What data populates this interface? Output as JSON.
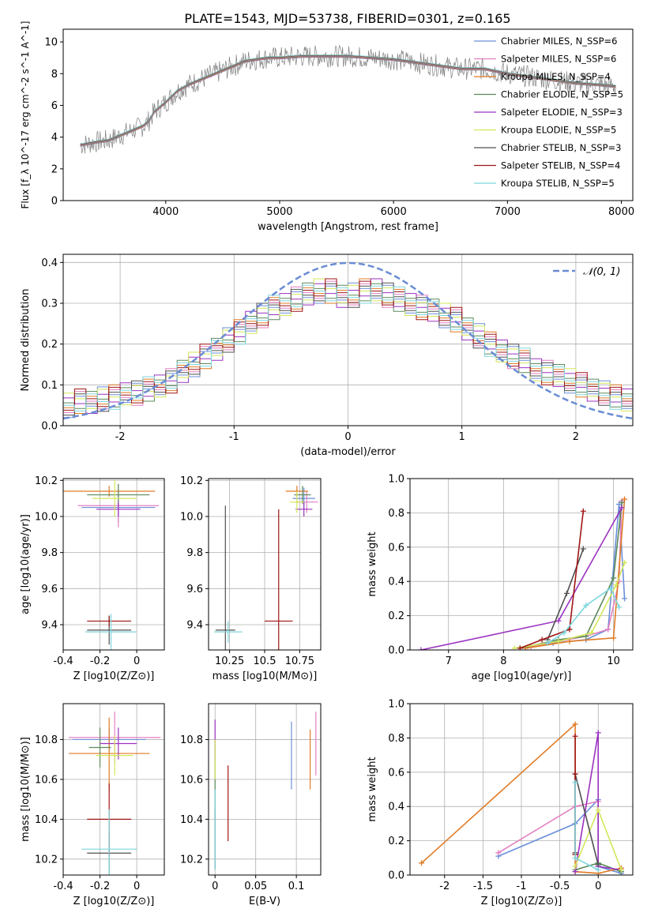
{
  "figure_title": "PLATE=1543, MJD=53738, FIBERID=0301, z=0.165",
  "legend_labels": [
    "Chabrier MILES, N_SSP=6",
    "Salpeter MILES, N_SSP=6",
    "Kroupa MILES, N_SSP=4",
    "Chabrier ELODIE, N_SSP=5",
    "Salpeter ELODIE, N_SSP=3",
    "Kroupa ELODIE, N_SSP=5",
    "Chabrier STELIB, N_SSP=3",
    "Salpeter STELIB, N_SSP=4",
    "Kroupa STELIB, N_SSP=5"
  ],
  "colors": {
    "data": "#808080",
    "models": [
      "#6b8fd9",
      "#e37fc0",
      "#e07b25",
      "#5c8a5c",
      "#9b32c0",
      "#d4e65a",
      "#505050",
      "#a01515",
      "#7ed6de"
    ]
  },
  "chart_data": [
    {
      "id": "spectrum",
      "type": "line",
      "title": "PLATE=1543, MJD=53738, FIBERID=0301, z=0.165",
      "xlabel": "wavelength [Angstrom, rest frame]",
      "ylabel": "Flux [f_λ 10^-17 erg cm^-2 s^-1 A^-1]",
      "xlim": [
        3100,
        8100
      ],
      "ylim": [
        0,
        10.8
      ],
      "xticks": [
        4000,
        5000,
        6000,
        7000,
        8000
      ],
      "yticks": [
        0,
        2,
        4,
        6,
        8,
        10
      ],
      "grid": false,
      "legend": "top-right",
      "x": [
        3250,
        3400,
        3500,
        3600,
        3700,
        3800,
        3850,
        3900,
        4000,
        4100,
        4200,
        4300,
        4400,
        4500,
        4600,
        4700,
        4800,
        4900,
        5000,
        5200,
        5400,
        5600,
        5800,
        6000,
        6200,
        6400,
        6600,
        6800,
        7000,
        7200,
        7400,
        7600,
        7800,
        7950
      ],
      "y": [
        3.5,
        3.7,
        3.8,
        4.1,
        4.4,
        4.7,
        5.0,
        5.6,
        6.2,
        6.9,
        7.3,
        7.6,
        7.9,
        8.2,
        8.5,
        8.8,
        8.9,
        9.0,
        9.0,
        9.1,
        9.1,
        9.1,
        9.0,
        8.9,
        8.7,
        8.5,
        8.3,
        8.3,
        8.0,
        7.8,
        7.6,
        7.4,
        7.3,
        7.2
      ]
    },
    {
      "id": "residuals",
      "type": "line",
      "xlabel": "(data-model)/error",
      "ylabel": "Normed distribution",
      "xlim": [
        -2.5,
        2.5
      ],
      "ylim": [
        0,
        0.42
      ],
      "xticks": [
        -2,
        -1,
        0,
        1,
        2
      ],
      "yticks": [
        0.0,
        0.1,
        0.2,
        0.3,
        0.4
      ],
      "grid": true,
      "legend": "top-right",
      "reference_curve": "N(0,1)",
      "hist_x": [
        -2.5,
        -2.4,
        -2.3,
        -2.2,
        -2.1,
        -2.0,
        -1.9,
        -1.8,
        -1.7,
        -1.6,
        -1.5,
        -1.4,
        -1.3,
        -1.2,
        -1.1,
        -1.0,
        -0.9,
        -0.8,
        -0.7,
        -0.6,
        -0.5,
        -0.4,
        -0.3,
        -0.2,
        -0.1,
        0.0,
        0.1,
        0.2,
        0.3,
        0.4,
        0.5,
        0.6,
        0.7,
        0.8,
        0.9,
        1.0,
        1.1,
        1.2,
        1.3,
        1.4,
        1.5,
        1.6,
        1.7,
        1.8,
        1.9,
        2.0,
        2.1,
        2.2,
        2.3,
        2.4,
        2.5
      ],
      "hist_y": [
        0.05,
        0.06,
        0.06,
        0.065,
        0.07,
        0.075,
        0.08,
        0.09,
        0.1,
        0.11,
        0.13,
        0.15,
        0.17,
        0.19,
        0.21,
        0.23,
        0.25,
        0.27,
        0.29,
        0.3,
        0.31,
        0.32,
        0.33,
        0.33,
        0.32,
        0.32,
        0.33,
        0.33,
        0.32,
        0.31,
        0.3,
        0.29,
        0.28,
        0.27,
        0.26,
        0.24,
        0.22,
        0.2,
        0.18,
        0.17,
        0.16,
        0.14,
        0.13,
        0.12,
        0.11,
        0.1,
        0.09,
        0.08,
        0.07,
        0.06
      ]
    },
    {
      "id": "age_vs_Z",
      "type": "scatter",
      "xlabel": "Z [log10(Z/Z⊙)]",
      "ylabel": "age [log10(age/yr)]",
      "xlim": [
        -0.4,
        0.15
      ],
      "ylim": [
        9.26,
        10.21
      ],
      "xticks": [
        -0.4,
        -0.2,
        0.0
      ],
      "yticks": [
        9.4,
        9.6,
        9.8,
        10.0,
        10.2
      ],
      "grid": true,
      "points": [
        {
          "x": -0.1,
          "y": 10.05,
          "xerr": 0.2,
          "yerr": 0.08,
          "c": 0
        },
        {
          "x": -0.1,
          "y": 10.06,
          "xerr": 0.22,
          "yerr": 0.12,
          "c": 1
        },
        {
          "x": -0.15,
          "y": 10.14,
          "xerr": 0.25,
          "yerr": 0.03,
          "c": 2
        },
        {
          "x": -0.1,
          "y": 10.12,
          "xerr": 0.17,
          "yerr": 0.06,
          "c": 3
        },
        {
          "x": -0.1,
          "y": 10.04,
          "xerr": 0.12,
          "yerr": 0.04,
          "c": 4
        },
        {
          "x": -0.12,
          "y": 10.1,
          "xerr": 0.12,
          "yerr": 0.1,
          "c": 5
        },
        {
          "x": -0.15,
          "y": 9.37,
          "xerr": 0.12,
          "yerr": 0.08,
          "c": 6
        },
        {
          "x": -0.15,
          "y": 9.42,
          "xerr": 0.12,
          "yerr": 0.03,
          "c": 7
        },
        {
          "x": -0.14,
          "y": 9.36,
          "xerr": 0.14,
          "yerr": 0.1,
          "c": 8
        }
      ]
    },
    {
      "id": "age_vs_mass",
      "type": "scatter",
      "xlabel": "mass [log10(M/M⊙)]",
      "ylabel": "",
      "xlim": [
        10.1,
        10.9
      ],
      "ylim": [
        9.26,
        10.21
      ],
      "xticks": [
        10.25,
        10.5,
        10.75
      ],
      "yticks": [
        9.4,
        9.6,
        9.8,
        10.0,
        10.2
      ],
      "grid": true,
      "points": [
        {
          "x": 10.78,
          "y": 10.1,
          "xerr": 0.08,
          "yerr": 0.06,
          "c": 0
        },
        {
          "x": 10.8,
          "y": 10.08,
          "xerr": 0.08,
          "yerr": 0.06,
          "c": 1
        },
        {
          "x": 10.73,
          "y": 10.14,
          "xerr": 0.08,
          "yerr": 0.03,
          "c": 2
        },
        {
          "x": 10.77,
          "y": 10.12,
          "xerr": 0.06,
          "yerr": 0.05,
          "c": 3
        },
        {
          "x": 10.78,
          "y": 10.04,
          "xerr": 0.06,
          "yerr": 0.04,
          "c": 4
        },
        {
          "x": 10.73,
          "y": 10.08,
          "xerr": 0.05,
          "yerr": 0.06,
          "c": 5
        },
        {
          "x": 10.22,
          "y": 9.37,
          "xerr": 0.07,
          "yerr": 0.69,
          "c": 6
        },
        {
          "x": 10.6,
          "y": 9.42,
          "xerr": 0.1,
          "yerr": 0.62,
          "c": 7
        },
        {
          "x": 10.24,
          "y": 9.36,
          "xerr": 0.1,
          "yerr": 0.06,
          "c": 8
        }
      ]
    },
    {
      "id": "weight_vs_age",
      "type": "line",
      "xlabel": "age [log10(age/yr)]",
      "ylabel": "mass weight",
      "xlim": [
        6.3,
        10.35
      ],
      "ylim": [
        0,
        1.0
      ],
      "xticks": [
        7,
        8,
        9,
        10
      ],
      "yticks": [
        0.0,
        0.2,
        0.4,
        0.6,
        0.8,
        1.0
      ],
      "grid": true,
      "series": [
        {
          "c": 0,
          "x": [
            8.3,
            8.9,
            9.5,
            9.9,
            10.1,
            10.2
          ],
          "y": [
            0.01,
            0.04,
            0.06,
            0.12,
            0.85,
            0.3
          ]
        },
        {
          "c": 1,
          "x": [
            8.5,
            9.0,
            9.5,
            9.9,
            10.1,
            10.15
          ],
          "y": [
            0.02,
            0.05,
            0.08,
            0.12,
            0.4,
            0.87
          ]
        },
        {
          "c": 2,
          "x": [
            8.4,
            9.2,
            10.0,
            10.2
          ],
          "y": [
            0.01,
            0.05,
            0.07,
            0.88
          ]
        },
        {
          "c": 3,
          "x": [
            8.3,
            9.0,
            9.5,
            10.0,
            10.15
          ],
          "y": [
            0.01,
            0.06,
            0.08,
            0.42,
            0.86
          ]
        },
        {
          "c": 4,
          "x": [
            6.5,
            9.0,
            10.15
          ],
          "y": [
            0.0,
            0.17,
            0.83
          ]
        },
        {
          "c": 5,
          "x": [
            8.2,
            9.0,
            9.6,
            10.05,
            10.2
          ],
          "y": [
            0.01,
            0.05,
            0.1,
            0.38,
            0.51
          ]
        },
        {
          "c": 6,
          "x": [
            8.8,
            9.15,
            9.45
          ],
          "y": [
            0.06,
            0.33,
            0.59
          ]
        },
        {
          "c": 7,
          "x": [
            8.3,
            8.7,
            9.2,
            9.45
          ],
          "y": [
            0.01,
            0.06,
            0.12,
            0.81
          ]
        },
        {
          "c": 8,
          "x": [
            8.8,
            9.1,
            9.5,
            9.95,
            10.1
          ],
          "y": [
            0.04,
            0.1,
            0.26,
            0.36,
            0.25
          ]
        }
      ]
    },
    {
      "id": "mass_vs_Z",
      "type": "scatter",
      "xlabel": "Z [log10(Z/Z⊙)]",
      "ylabel": "mass [log10(M/M⊙)]",
      "xlim": [
        -0.4,
        0.15
      ],
      "ylim": [
        10.12,
        10.98
      ],
      "xticks": [
        -0.4,
        -0.2,
        0.0
      ],
      "yticks": [
        10.2,
        10.4,
        10.6,
        10.8
      ],
      "grid": true,
      "points": [
        {
          "x": -0.15,
          "y": 10.8,
          "xerr": 0.2,
          "yerr": 0.06,
          "c": 0
        },
        {
          "x": -0.12,
          "y": 10.81,
          "xerr": 0.25,
          "yerr": 0.13,
          "c": 1
        },
        {
          "x": -0.15,
          "y": 10.73,
          "xerr": 0.22,
          "yerr": 0.18,
          "c": 2
        },
        {
          "x": -0.2,
          "y": 10.76,
          "xerr": 0.06,
          "yerr": 0.1,
          "c": 3
        },
        {
          "x": -0.1,
          "y": 10.78,
          "xerr": 0.1,
          "yerr": 0.08,
          "c": 4
        },
        {
          "x": -0.12,
          "y": 10.72,
          "xerr": 0.1,
          "yerr": 0.1,
          "c": 5
        },
        {
          "x": -0.15,
          "y": 10.23,
          "xerr": 0.12,
          "yerr": 0.1,
          "c": 6
        },
        {
          "x": -0.15,
          "y": 10.4,
          "xerr": 0.12,
          "yerr": 0.18,
          "c": 7
        },
        {
          "x": -0.15,
          "y": 10.25,
          "xerr": 0.15,
          "yerr": 0.2,
          "c": 8
        }
      ]
    },
    {
      "id": "mass_vs_EBV",
      "type": "scatter",
      "xlabel": "E(B-V)",
      "ylabel": "",
      "xlim": [
        -0.008,
        0.13
      ],
      "ylim": [
        10.12,
        10.98
      ],
      "xticks": [
        0.0,
        0.05,
        0.1
      ],
      "yticks": [
        10.2,
        10.4,
        10.6,
        10.8
      ],
      "grid": true,
      "points": [
        {
          "x": 0.094,
          "y": 10.72,
          "xerr": 0,
          "yerr": 0.17,
          "c": 0
        },
        {
          "x": 0.124,
          "y": 10.78,
          "xerr": 0,
          "yerr": 0.16,
          "c": 1
        },
        {
          "x": 0.117,
          "y": 10.7,
          "xerr": 0,
          "yerr": 0.15,
          "c": 2
        },
        {
          "x": 0.0,
          "y": 10.6,
          "xerr": 0,
          "yerr": 0.2,
          "c": 3
        },
        {
          "x": 0.0,
          "y": 10.8,
          "xerr": 0,
          "yerr": 0.1,
          "c": 4
        },
        {
          "x": 0.0,
          "y": 10.7,
          "xerr": 0,
          "yerr": 0.1,
          "c": 5
        },
        {
          "x": 0.0,
          "y": 10.3,
          "xerr": 0,
          "yerr": 0.15,
          "c": 6
        },
        {
          "x": 0.016,
          "y": 10.48,
          "xerr": 0,
          "yerr": 0.19,
          "c": 7
        },
        {
          "x": 0.0,
          "y": 10.35,
          "xerr": 0,
          "yerr": 0.2,
          "c": 8
        }
      ]
    },
    {
      "id": "weight_vs_Z",
      "type": "line",
      "xlabel": "Z [log10(Z/Z⊙)]",
      "ylabel": "mass weight",
      "xlim": [
        -2.45,
        0.45
      ],
      "ylim": [
        0,
        1.0
      ],
      "xticks": [
        -2.0,
        -1.5,
        -1.0,
        -0.5,
        0.0
      ],
      "yticks": [
        0.0,
        0.2,
        0.4,
        0.6,
        0.8,
        1.0
      ],
      "grid": true,
      "series": [
        {
          "c": 0,
          "x": [
            -1.3,
            -0.3,
            0.0,
            0.0,
            0.3
          ],
          "y": [
            0.11,
            0.3,
            0.44,
            0.05,
            0.01
          ]
        },
        {
          "c": 1,
          "x": [
            -1.3,
            -0.3,
            0.0,
            0.0
          ],
          "y": [
            0.13,
            0.4,
            0.43,
            0.05
          ]
        },
        {
          "c": 2,
          "x": [
            -2.3,
            -0.3,
            -0.3,
            0.0,
            0.3
          ],
          "y": [
            0.07,
            0.88,
            0.02,
            0.01,
            0.04
          ]
        },
        {
          "c": 3,
          "x": [
            -0.3,
            0.0,
            0.3
          ],
          "y": [
            0.03,
            0.07,
            0.02
          ]
        },
        {
          "c": 4,
          "x": [
            -0.3,
            0.0,
            0.0,
            0.3
          ],
          "y": [
            0.02,
            0.83,
            0.05,
            0.03
          ]
        },
        {
          "c": 5,
          "x": [
            -0.3,
            0.0,
            0.3
          ],
          "y": [
            0.05,
            0.38,
            0.03
          ]
        },
        {
          "c": 6,
          "x": [
            -0.3,
            -0.3,
            0.0
          ],
          "y": [
            0.13,
            0.59,
            0.06
          ]
        },
        {
          "c": 7,
          "x": [
            -0.3,
            -0.3,
            -0.3
          ],
          "y": [
            0.81,
            0.59,
            0.12
          ]
        },
        {
          "c": 8,
          "x": [
            -0.3,
            -0.3,
            0.0
          ],
          "y": [
            0.54,
            0.1,
            0.03
          ]
        }
      ]
    }
  ]
}
